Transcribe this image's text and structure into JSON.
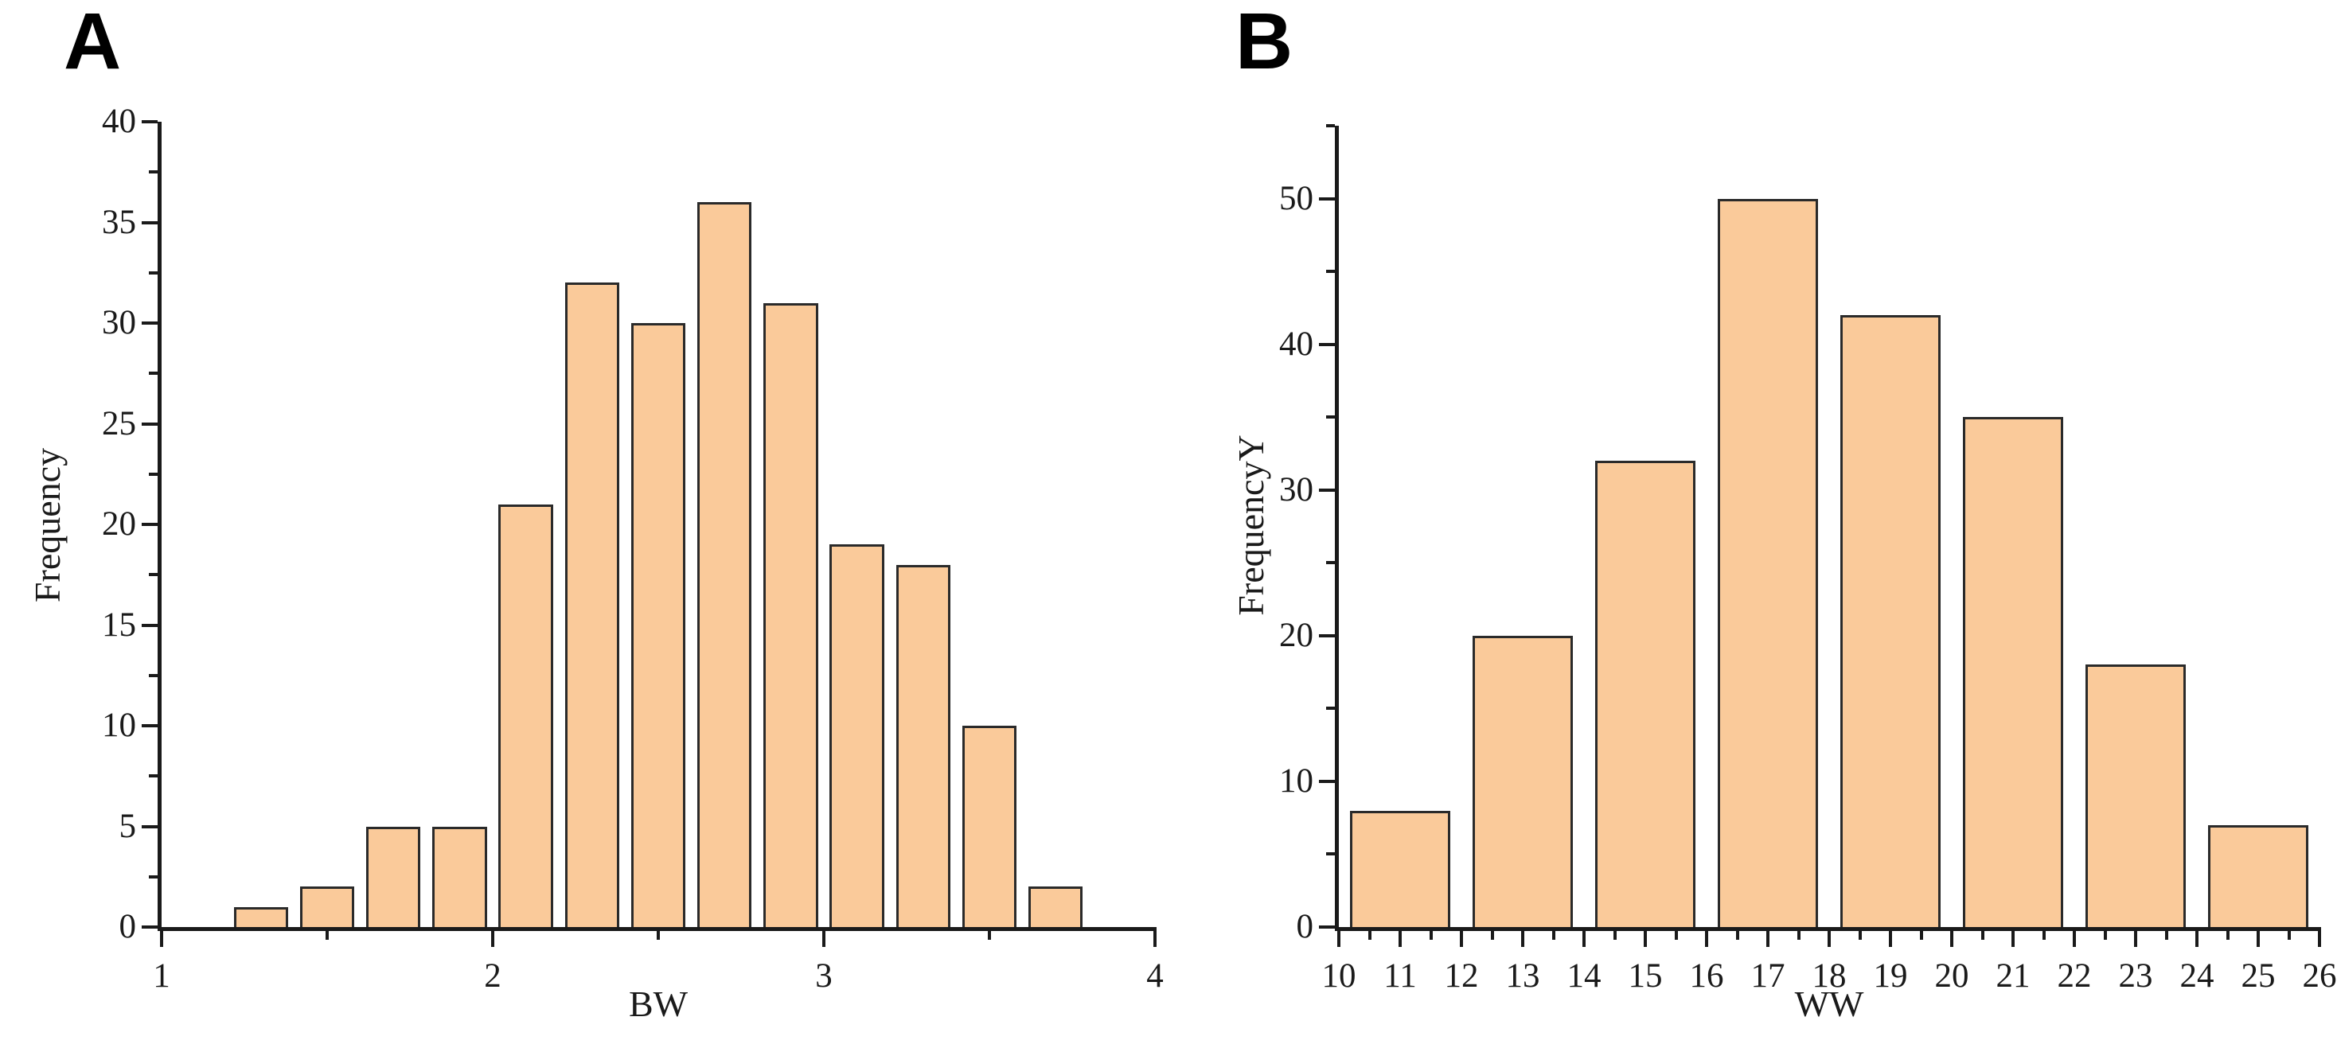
{
  "figure": {
    "background": "#ffffff",
    "text_color": "#1a1a1a",
    "axis_color": "#1a1a1a"
  },
  "panel_labels": [
    "A",
    "B"
  ],
  "chart_data": [
    {
      "type": "bar",
      "panel": "A",
      "title": "",
      "xlabel": "BW",
      "ylabel": "Frequency",
      "xlim": [
        1,
        4
      ],
      "ylim": [
        0,
        40
      ],
      "x_major_ticks": [
        1,
        2,
        3,
        4
      ],
      "x_minor_step": 0.5,
      "y_major_ticks": [
        0,
        5,
        10,
        15,
        20,
        25,
        30,
        35,
        40
      ],
      "y_minor_step": 2.5,
      "grid": false,
      "legend": null,
      "bins": {
        "start": 1.2,
        "width": 0.2
      },
      "bin_centers": [
        1.3,
        1.5,
        1.7,
        1.9,
        2.1,
        2.3,
        2.5,
        2.7,
        2.9,
        3.1,
        3.3,
        3.5,
        3.7
      ],
      "counts": [
        1,
        2,
        5,
        5,
        21,
        32,
        30,
        36,
        31,
        19,
        18,
        10,
        2
      ],
      "bar_fill": "#FACA9A",
      "bar_stroke": "#2a2a2a",
      "bar_inset_frac": 0.09
    },
    {
      "type": "bar",
      "panel": "B",
      "title": "",
      "xlabel": "WW",
      "ylabel": "FrequencyY",
      "xlim": [
        10,
        26
      ],
      "ylim": [
        0,
        55
      ],
      "x_major_ticks": [
        10,
        11,
        12,
        13,
        14,
        15,
        16,
        17,
        18,
        19,
        20,
        21,
        22,
        23,
        24,
        25,
        26
      ],
      "x_minor_step": 0.5,
      "y_major_ticks": [
        0,
        10,
        20,
        30,
        40,
        50
      ],
      "y_minor_step": 5,
      "grid": false,
      "legend": null,
      "bins": {
        "start": 10,
        "width": 2
      },
      "bin_centers": [
        11,
        13,
        15,
        17,
        19,
        21,
        23,
        25
      ],
      "counts": [
        8,
        20,
        32,
        50,
        42,
        35,
        18,
        7
      ],
      "bar_fill": "#FACA9A",
      "bar_stroke": "#2a2a2a",
      "bar_inset_frac": 0.09
    }
  ]
}
